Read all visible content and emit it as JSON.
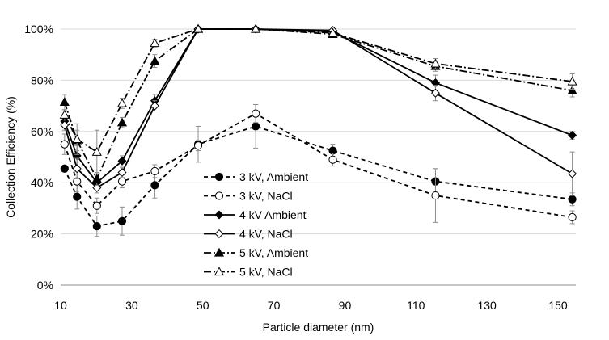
{
  "chart_data": {
    "type": "line",
    "xlabel": "Particle diameter (nm)",
    "ylabel": "Collection Efficiency (%)",
    "xlim": [
      10,
      155
    ],
    "ylim": [
      0,
      100
    ],
    "x_ticks": [
      10,
      30,
      50,
      70,
      90,
      110,
      130,
      150
    ],
    "x_tick_labels": [
      "10",
      "30",
      "50",
      "70",
      "90",
      "110",
      "130",
      "150"
    ],
    "y_ticks": [
      0,
      20,
      40,
      60,
      80,
      100
    ],
    "y_tick_labels": [
      "0%",
      "20%",
      "40%",
      "60%",
      "80%",
      "100%"
    ],
    "grid": "horizontal",
    "legend_position": "center-left",
    "series": [
      {
        "name": "3 kV, Ambient",
        "dash": "5,4",
        "marker": "circle",
        "filled": true,
        "points": [
          {
            "x": 11.1,
            "y": 45.5,
            "err": 0
          },
          {
            "x": 14.6,
            "y": 34.5,
            "err": 4.8
          },
          {
            "x": 20.2,
            "y": 23.0,
            "err": 4.0
          },
          {
            "x": 27.3,
            "y": 25.0,
            "err": 5.5
          },
          {
            "x": 36.5,
            "y": 39.0,
            "err": 5.0
          },
          {
            "x": 48.7,
            "y": 55.0,
            "err": 7.0
          },
          {
            "x": 64.9,
            "y": 62.0,
            "err": 8.5
          },
          {
            "x": 86.6,
            "y": 52.5,
            "err": 2.5
          },
          {
            "x": 115.5,
            "y": 40.5,
            "err": 4.5
          },
          {
            "x": 154.0,
            "y": 33.5,
            "err": 2.5
          }
        ]
      },
      {
        "name": "3 kV, NaCl",
        "dash": "5,4",
        "marker": "circle",
        "filled": false,
        "points": [
          {
            "x": 11.1,
            "y": 55.0,
            "err": 4.0
          },
          {
            "x": 14.6,
            "y": 40.5,
            "err": 4.0
          },
          {
            "x": 20.2,
            "y": 31.0,
            "err": 3.0
          },
          {
            "x": 27.3,
            "y": 40.5,
            "err": 2.5
          },
          {
            "x": 36.5,
            "y": 44.5,
            "err": 2.5
          },
          {
            "x": 48.7,
            "y": 54.5,
            "err": 2.0
          },
          {
            "x": 64.9,
            "y": 67.0,
            "err": 3.5
          },
          {
            "x": 86.6,
            "y": 49.0,
            "err": 2.5
          },
          {
            "x": 115.5,
            "y": 35.0,
            "err": 10.5
          },
          {
            "x": 154.0,
            "y": 26.5,
            "err": 2.5
          }
        ]
      },
      {
        "name": "4 kV Ambient",
        "dash": "",
        "marker": "diamond",
        "filled": true,
        "points": [
          {
            "x": 11.1,
            "y": 64.0,
            "err": 2.0
          },
          {
            "x": 14.6,
            "y": 50.5,
            "err": 4.0
          },
          {
            "x": 20.2,
            "y": 40.0,
            "err": 2.0
          },
          {
            "x": 27.3,
            "y": 48.5,
            "err": 2.0
          },
          {
            "x": 36.5,
            "y": 72.0,
            "err": 2.5
          },
          {
            "x": 48.7,
            "y": 100.0,
            "err": 0
          },
          {
            "x": 64.9,
            "y": 100.0,
            "err": 0
          },
          {
            "x": 86.6,
            "y": 99.0,
            "err": 0
          },
          {
            "x": 115.5,
            "y": 79.0,
            "err": 3.0
          },
          {
            "x": 154.0,
            "y": 58.5,
            "err": 1.5
          }
        ]
      },
      {
        "name": "4 kV, NaCl",
        "dash": "",
        "marker": "diamond",
        "filled": false,
        "points": [
          {
            "x": 11.1,
            "y": 62.5,
            "err": 2.0
          },
          {
            "x": 14.6,
            "y": 45.5,
            "err": 4.0
          },
          {
            "x": 20.2,
            "y": 38.0,
            "err": 2.0
          },
          {
            "x": 27.3,
            "y": 44.0,
            "err": 2.0
          },
          {
            "x": 36.5,
            "y": 70.0,
            "err": 2.0
          },
          {
            "x": 48.7,
            "y": 100.0,
            "err": 0
          },
          {
            "x": 64.9,
            "y": 100.0,
            "err": 0
          },
          {
            "x": 86.6,
            "y": 99.5,
            "err": 0
          },
          {
            "x": 115.5,
            "y": 75.0,
            "err": 3.0
          },
          {
            "x": 154.0,
            "y": 43.5,
            "err": 8.5
          }
        ]
      },
      {
        "name": "5 kV, Ambient",
        "dash": "9,3,2,3",
        "marker": "triangle",
        "filled": true,
        "points": [
          {
            "x": 11.1,
            "y": 71.5,
            "err": 3.0
          },
          {
            "x": 14.6,
            "y": 56.5,
            "err": 4.0
          },
          {
            "x": 20.2,
            "y": 41.5,
            "err": 2.5
          },
          {
            "x": 27.3,
            "y": 63.5,
            "err": 2.0
          },
          {
            "x": 36.5,
            "y": 87.5,
            "err": 2.5
          },
          {
            "x": 48.7,
            "y": 100.0,
            "err": 0
          },
          {
            "x": 64.9,
            "y": 100.0,
            "err": 0
          },
          {
            "x": 86.6,
            "y": 98.0,
            "err": 0
          },
          {
            "x": 115.5,
            "y": 85.5,
            "err": 2.0
          },
          {
            "x": 154.0,
            "y": 76.0,
            "err": 2.5
          }
        ]
      },
      {
        "name": "5 kV, NaCl",
        "dash": "9,3,2,3",
        "marker": "triangle",
        "filled": false,
        "points": [
          {
            "x": 11.1,
            "y": 66.5,
            "err": 2.0
          },
          {
            "x": 14.6,
            "y": 57.0,
            "err": 6.0
          },
          {
            "x": 20.2,
            "y": 52.0,
            "err": 8.5
          },
          {
            "x": 27.3,
            "y": 71.0,
            "err": 2.0
          },
          {
            "x": 36.5,
            "y": 94.5,
            "err": 1.5
          },
          {
            "x": 48.7,
            "y": 100.0,
            "err": 0
          },
          {
            "x": 64.9,
            "y": 100.0,
            "err": 0
          },
          {
            "x": 86.6,
            "y": 98.5,
            "err": 0
          },
          {
            "x": 115.5,
            "y": 86.5,
            "err": 2.0
          },
          {
            "x": 154.0,
            "y": 79.5,
            "err": 3.0
          }
        ]
      }
    ]
  }
}
